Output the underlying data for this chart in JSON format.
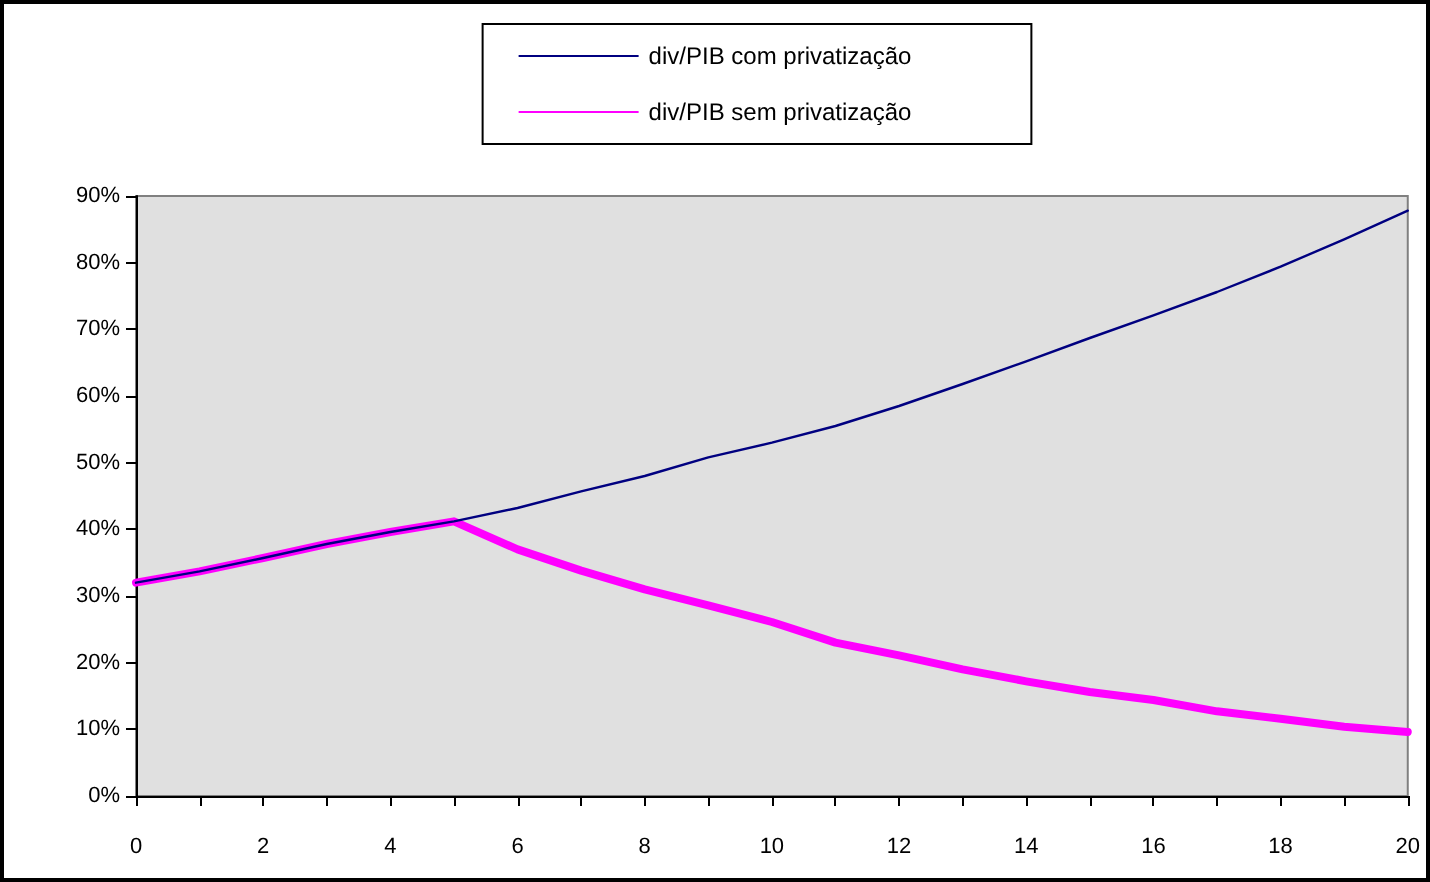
{
  "chart_data": {
    "type": "line",
    "x": [
      0,
      1,
      2,
      3,
      4,
      5,
      6,
      7,
      8,
      9,
      10,
      11,
      12,
      13,
      14,
      15,
      16,
      17,
      18,
      19,
      20
    ],
    "series": [
      {
        "name": "div/PIB com privatização",
        "color": "#000080",
        "values": [
          32.0,
          33.7,
          35.7,
          37.8,
          39.6,
          41.2,
          43.2,
          45.7,
          48.0,
          50.8,
          53.0,
          55.5,
          58.5,
          61.8,
          65.2,
          68.7,
          72.1,
          75.6,
          79.4,
          83.5,
          87.8
        ]
      },
      {
        "name": "div/PIB sem privatização",
        "color": "#ff00ff",
        "values": [
          32.0,
          33.7,
          35.7,
          37.8,
          39.6,
          41.2,
          37.0,
          33.8,
          31.0,
          28.6,
          26.1,
          23.0,
          21.1,
          19.0,
          17.2,
          15.6,
          14.4,
          12.7,
          11.6,
          10.4,
          9.6
        ]
      }
    ],
    "xlim": [
      0,
      20
    ],
    "xticks": [
      0,
      {
        "value": 1,
        "label": null
      },
      2,
      {
        "value": 3,
        "label": null
      },
      4,
      {
        "value": 5,
        "label": null
      },
      6,
      {
        "value": 7,
        "label": null
      },
      8,
      {
        "value": 9,
        "label": null
      },
      10,
      {
        "value": 11,
        "label": null
      },
      12,
      {
        "value": 13,
        "label": null
      },
      14,
      {
        "value": 15,
        "label": null
      },
      16,
      {
        "value": 17,
        "label": null
      },
      18,
      {
        "value": 19,
        "label": null
      },
      20
    ],
    "ylim": [
      0,
      90
    ],
    "yticks": [
      {
        "value": 0,
        "label": "0%"
      },
      {
        "value": 10,
        "label": "10%"
      },
      {
        "value": 20,
        "label": "20%"
      },
      {
        "value": 30,
        "label": "30%"
      },
      {
        "value": 40,
        "label": "40%"
      },
      {
        "value": 50,
        "label": "50%"
      },
      {
        "value": 60,
        "label": "60%"
      },
      {
        "value": 70,
        "label": "70%"
      },
      {
        "value": 80,
        "label": "80%"
      },
      {
        "value": 90,
        "label": "90%"
      }
    ],
    "grid": false,
    "legend": "top",
    "marker": "none",
    "line_style": "solid"
  }
}
